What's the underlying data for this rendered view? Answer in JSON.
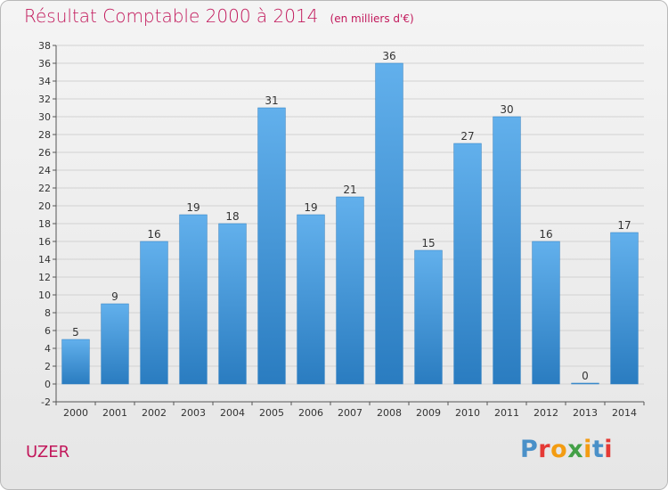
{
  "header": {
    "title": "Résultat Comptable 2000 à 2014",
    "subtitle": "(en milliers d'€)"
  },
  "footer": {
    "commune": "UZER",
    "logo_text": "Proxiti",
    "logo_colors": [
      "#4a90c8",
      "#e53935",
      "#f39c12",
      "#43a047",
      "#f39c12",
      "#4a90c8",
      "#e53935"
    ]
  },
  "chart_data": {
    "type": "bar",
    "title": "Résultat Comptable 2000 à 2014",
    "subtitle": "(en milliers d'€)",
    "xlabel": "",
    "ylabel": "",
    "categories": [
      "2000",
      "2001",
      "2002",
      "2003",
      "2004",
      "2005",
      "2006",
      "2007",
      "2008",
      "2009",
      "2010",
      "2011",
      "2012",
      "2013",
      "2014"
    ],
    "values": [
      5,
      9,
      16,
      19,
      18,
      31,
      19,
      21,
      36,
      15,
      27,
      30,
      16,
      0,
      17
    ],
    "ylim": [
      -2,
      38
    ],
    "ytick_step": 2,
    "grid": true,
    "colors": {
      "bar_light": "#62b0ec",
      "bar_dark": "#2a7cc0",
      "grid": "#d2d2d2",
      "axis": "#555555"
    }
  }
}
